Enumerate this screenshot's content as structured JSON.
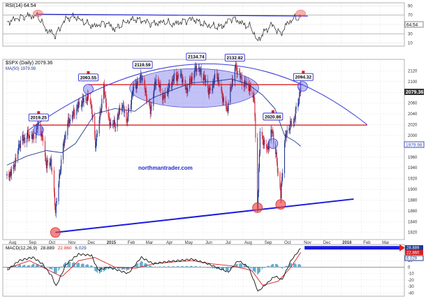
{
  "chart_data": [
    {
      "panel": "rsi",
      "type": "line",
      "title": "RSI(14) 64.54",
      "current_label": "64.54",
      "y_ticks": [
        90,
        70,
        50,
        30,
        10
      ],
      "ylim": [
        5,
        95
      ],
      "overbought": 70,
      "oversold": 30,
      "series": [
        {
          "x": [
            "2014-08-01",
            "2014-08-15",
            "2014-09-02",
            "2014-09-18",
            "2014-10-01",
            "2014-10-15",
            "2014-11-01",
            "2014-11-15",
            "2014-12-01",
            "2014-12-15",
            "2015-01-01",
            "2015-01-15",
            "2015-02-01",
            "2015-02-15",
            "2015-03-01",
            "2015-03-15",
            "2015-04-01",
            "2015-04-15",
            "2015-05-01",
            "2015-05-15",
            "2015-06-01",
            "2015-06-15",
            "2015-07-01",
            "2015-07-15",
            "2015-08-01",
            "2015-08-15",
            "2015-08-24",
            "2015-09-01",
            "2015-09-15",
            "2015-09-29",
            "2015-10-10",
            "2015-10-20",
            "2015-10-30"
          ],
          "values": [
            55,
            60,
            68,
            70,
            40,
            25,
            62,
            68,
            55,
            45,
            52,
            40,
            58,
            62,
            55,
            50,
            58,
            52,
            55,
            60,
            52,
            48,
            45,
            62,
            52,
            45,
            15,
            30,
            48,
            28,
            55,
            65,
            66
          ]
        }
      ],
      "trendline": {
        "x": [
          "2014-09-18",
          "2015-11-10"
        ],
        "values": [
          72,
          68
        ]
      },
      "highlights": [
        "2014-09-18",
        "2015-10-30"
      ]
    },
    {
      "panel": "price",
      "type": "candlestick",
      "title": "$SPX (Daily) 2079.36",
      "ma_label": "MA(50) 1979.98",
      "last_value_label": "2079.36",
      "ma_value_label": "1979.98",
      "watermark": "northmantrader.com",
      "y_ticks": [
        2120,
        2100,
        2080,
        2060,
        2040,
        2020,
        2000,
        1980,
        1960,
        1940,
        1920,
        1900,
        1880,
        1860,
        1840,
        1820
      ],
      "ylim": [
        1808,
        2140
      ],
      "x_axis_labels": [
        "Aug",
        "Sep",
        "Oct",
        "Nov",
        "Dec",
        "2015",
        "Feb",
        "Mar",
        "Apr",
        "May",
        "Jun",
        "Jul",
        "Aug",
        "Sep",
        "Oct",
        "Nov",
        "Dec",
        "2016",
        "Feb",
        "Mar"
      ],
      "close_series": {
        "x": [
          "2014-08-01",
          "2014-08-10",
          "2014-08-20",
          "2014-09-01",
          "2014-09-10",
          "2014-09-19",
          "2014-09-25",
          "2014-10-01",
          "2014-10-08",
          "2014-10-15",
          "2014-10-22",
          "2014-11-01",
          "2014-11-10",
          "2014-11-20",
          "2014-12-01",
          "2014-12-08",
          "2014-12-16",
          "2014-12-29",
          "2015-01-06",
          "2015-01-16",
          "2015-01-26",
          "2015-02-02",
          "2015-02-12",
          "2015-02-25",
          "2015-03-05",
          "2015-03-11",
          "2015-03-20",
          "2015-04-01",
          "2015-04-15",
          "2015-04-27",
          "2015-05-06",
          "2015-05-21",
          "2015-06-01",
          "2015-06-10",
          "2015-06-22",
          "2015-07-01",
          "2015-07-08",
          "2015-07-20",
          "2015-08-01",
          "2015-08-12",
          "2015-08-19",
          "2015-08-24",
          "2015-08-28",
          "2015-09-08",
          "2015-09-16",
          "2015-09-22",
          "2015-09-29",
          "2015-10-05",
          "2015-10-12",
          "2015-10-20",
          "2015-10-30"
        ],
        "values": [
          1925,
          1935,
          1985,
          2000,
          1995,
          2019,
          1995,
          1945,
          1955,
          1862,
          1935,
          2018,
          2035,
          2055,
          2068,
          2070,
          1985,
          2088,
          2025,
          2018,
          2060,
          2024,
          2085,
          2112,
          2075,
          2045,
          2105,
          2068,
          2105,
          2115,
          2085,
          2125,
          2110,
          2080,
          2115,
          2072,
          2048,
          2128,
          2098,
          2088,
          2070,
          1868,
          2005,
          1975,
          2010,
          1960,
          1885,
          1990,
          2015,
          2030,
          2090
        ]
      },
      "ma_series": {
        "x": [
          "2014-08-01",
          "2014-09-01",
          "2014-10-01",
          "2014-10-25",
          "2014-11-15",
          "2014-12-15",
          "2015-01-15",
          "2015-02-15",
          "2015-03-15",
          "2015-04-15",
          "2015-05-15",
          "2015-06-15",
          "2015-07-15",
          "2015-08-10",
          "2015-09-01",
          "2015-09-20",
          "2015-10-05",
          "2015-10-20",
          "2015-10-30"
        ],
        "values": [
          1945,
          1962,
          1972,
          1968,
          1985,
          2040,
          2050,
          2045,
          2070,
          2085,
          2098,
          2100,
          2105,
          2095,
          2075,
          2050,
          2000,
          1990,
          1980
        ]
      },
      "resistance_level": 2094.32,
      "support_level": 2019.25,
      "support_trendline": {
        "x": [
          "2014-10-15",
          "2016-01-20"
        ],
        "values": [
          1820,
          1882
        ]
      },
      "dome_arc": {
        "x": [
          "2014-09-01",
          "2015-06-01",
          "2016-02-10"
        ],
        "values": [
          2008,
          2133,
          2020
        ]
      },
      "consolidation_ellipse": {
        "center_x": "2015-05-18",
        "center_y": 2088,
        "rx_days": 100,
        "ry_points": 36
      },
      "annotations": [
        {
          "label": "2019.25",
          "x": "2014-09-19",
          "y": 2019.25,
          "arrow": true
        },
        {
          "label": "2093.55",
          "x": "2014-12-05",
          "y": 2093.55,
          "arrow": true
        },
        {
          "label": "2119.59",
          "x": "2015-02-27",
          "y": 2119.59,
          "arrow": false
        },
        {
          "label": "2134.74",
          "x": "2015-05-21",
          "y": 2134.74,
          "arrow": false
        },
        {
          "label": "2132.82",
          "x": "2015-07-20",
          "y": 2132.82,
          "arrow": false
        },
        {
          "label": "2020.86",
          "x": "2015-09-17",
          "y": 2020.86,
          "arrow": true
        },
        {
          "label": "2094.32",
          "x": "2015-11-03",
          "y": 2094.32,
          "arrow": true
        }
      ],
      "highlight_circles": [
        {
          "x": "2014-09-19",
          "y": 2010,
          "color": "blue"
        },
        {
          "x": "2014-12-05",
          "y": 2086,
          "color": "blue"
        },
        {
          "x": "2015-09-17",
          "y": 1985,
          "color": "blue"
        },
        {
          "x": "2015-11-02",
          "y": 2091,
          "color": "blue"
        },
        {
          "x": "2014-10-15",
          "y": 1820,
          "color": "red"
        },
        {
          "x": "2015-08-24",
          "y": 1866,
          "color": "red"
        },
        {
          "x": "2015-09-29",
          "y": 1872,
          "color": "red"
        }
      ]
    },
    {
      "panel": "macd",
      "type": "line",
      "title": "MACD(12,26,9) 28.889, 22.860, 6.029",
      "title_parts": {
        "name": "MACD(12,26,9)",
        "macd": "28.889",
        "signal": "22.860",
        "hist": "6.029"
      },
      "value_labels": [
        "28.889",
        "22.860",
        "6.029"
      ],
      "y_ticks": [
        20,
        10,
        0,
        -10,
        -20,
        -30,
        -40
      ],
      "ylim": [
        -44,
        34
      ],
      "macd_series": {
        "x": [
          "2014-08-01",
          "2014-08-20",
          "2014-09-10",
          "2014-09-25",
          "2014-10-10",
          "2014-10-16",
          "2014-11-01",
          "2014-11-20",
          "2014-12-10",
          "2014-12-20",
          "2015-01-05",
          "2015-01-20",
          "2015-02-05",
          "2015-02-25",
          "2015-03-15",
          "2015-04-05",
          "2015-04-25",
          "2015-05-15",
          "2015-06-05",
          "2015-06-25",
          "2015-07-10",
          "2015-07-25",
          "2015-08-10",
          "2015-08-25",
          "2015-09-05",
          "2015-09-20",
          "2015-10-01",
          "2015-10-15",
          "2015-10-30"
        ],
        "values": [
          -5,
          10,
          15,
          5,
          -15,
          -30,
          5,
          20,
          18,
          -5,
          0,
          -5,
          -10,
          15,
          5,
          8,
          10,
          12,
          6,
          -2,
          -8,
          10,
          0,
          -38,
          -28,
          -14,
          -20,
          10,
          28.9
        ]
      },
      "signal_series": {
        "x": [
          "2014-08-01",
          "2014-09-05",
          "2014-10-05",
          "2014-10-25",
          "2014-11-20",
          "2014-12-15",
          "2015-01-15",
          "2015-02-15",
          "2015-03-15",
          "2015-04-15",
          "2015-05-15",
          "2015-06-15",
          "2015-07-15",
          "2015-08-15",
          "2015-09-01",
          "2015-09-25",
          "2015-10-15",
          "2015-10-30"
        ],
        "values": [
          -2,
          10,
          -5,
          -15,
          10,
          15,
          0,
          -2,
          5,
          8,
          10,
          5,
          2,
          -5,
          -28,
          -22,
          0,
          22.86
        ]
      },
      "forward_arrow": {
        "from": "2015-11-05",
        "to": "2016-03-31",
        "y": 30
      }
    }
  ]
}
